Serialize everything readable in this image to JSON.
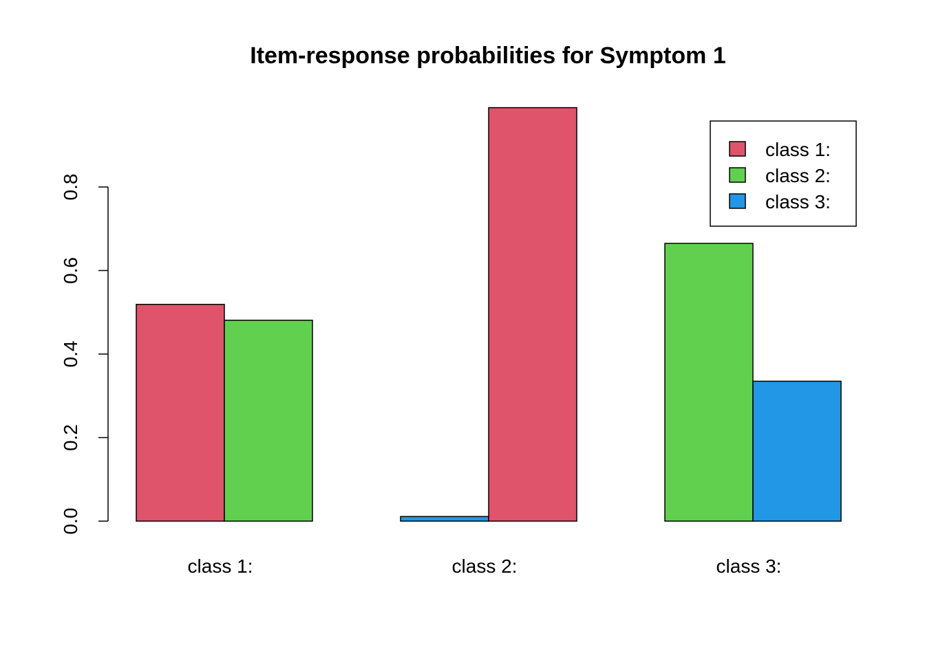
{
  "chart_data": {
    "type": "bar",
    "title": "Item-response probabilities for Symptom 1",
    "xlabel": "",
    "ylabel": "",
    "categories": [
      "class 1:",
      "class 2:",
      "class 3:"
    ],
    "ylim": [
      0,
      1
    ],
    "yticks": [
      "0.0",
      "0.2",
      "0.4",
      "0.6",
      "0.8"
    ],
    "grid": false,
    "legend_position": "top-right",
    "series": [
      {
        "name": "class 1:",
        "color": "#DF536B",
        "values": [
          0.519,
          0.99,
          0.0
        ]
      },
      {
        "name": "class 2:",
        "color": "#61D04F",
        "values": [
          0.481,
          0.0,
          0.665
        ]
      },
      {
        "name": "class 3:",
        "color": "#2297E6",
        "values": [
          0.0,
          0.011,
          0.335
        ]
      }
    ],
    "bar_groups": [
      [
        {
          "series": 0,
          "value": 0.519
        },
        {
          "series": 1,
          "value": 0.481
        }
      ],
      [
        {
          "series": 2,
          "value": 0.011
        },
        {
          "series": 0,
          "value": 0.99
        }
      ],
      [
        {
          "series": 1,
          "value": 0.665
        },
        {
          "series": 2,
          "value": 0.335
        }
      ]
    ]
  }
}
